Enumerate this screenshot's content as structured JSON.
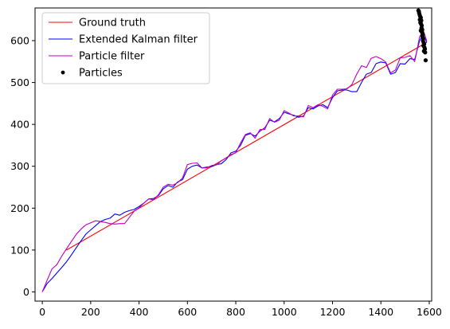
{
  "chart_data": {
    "type": "line",
    "title": "",
    "xlabel": "",
    "ylabel": "",
    "xlim": [
      -30,
      1610
    ],
    "ylim": [
      -22,
      678
    ],
    "xticks": [
      0,
      200,
      400,
      600,
      800,
      1000,
      1200,
      1400,
      1600
    ],
    "yticks": [
      0,
      100,
      200,
      300,
      400,
      500,
      600
    ],
    "grid": false,
    "legend_position": "top-left",
    "series": [
      {
        "name": "Ground truth",
        "kind": "line",
        "color": "#ff0000",
        "x": [
          100,
          1590
        ],
        "y": [
          100,
          596
        ]
      },
      {
        "name": "Extended Kalman filter",
        "kind": "line",
        "color": "#0000ff",
        "x": [
          0,
          20,
          40,
          60,
          80,
          100,
          120,
          140,
          160,
          180,
          200,
          220,
          240,
          260,
          280,
          300,
          320,
          340,
          360,
          380,
          400,
          420,
          440,
          460,
          480,
          500,
          520,
          540,
          560,
          580,
          600,
          620,
          640,
          660,
          680,
          700,
          720,
          740,
          760,
          780,
          800,
          820,
          840,
          860,
          880,
          900,
          920,
          940,
          960,
          980,
          1000,
          1020,
          1040,
          1060,
          1080,
          1100,
          1120,
          1140,
          1160,
          1180,
          1200,
          1220,
          1240,
          1260,
          1280,
          1300,
          1320,
          1340,
          1360,
          1380,
          1400,
          1420,
          1440,
          1460,
          1480,
          1500,
          1520,
          1540,
          1560,
          1575,
          1590
        ],
        "y": [
          0,
          20,
          32,
          45,
          58,
          72,
          88,
          105,
          122,
          138,
          148,
          158,
          168,
          173,
          176,
          186,
          183,
          190,
          194,
          197,
          204,
          212,
          222,
          223,
          230,
          246,
          254,
          250,
          263,
          268,
          293,
          300,
          303,
          296,
          298,
          299,
          304,
          306,
          316,
          332,
          336,
          350,
          374,
          378,
          372,
          384,
          392,
          410,
          406,
          414,
          429,
          425,
          422,
          417,
          420,
          440,
          437,
          444,
          447,
          440,
          464,
          480,
          482,
          482,
          478,
          478,
          500,
          520,
          524,
          545,
          549,
          547,
          520,
          524,
          545,
          544,
          557,
          555,
          600,
          615,
          596
        ]
      },
      {
        "name": "Particle filter",
        "kind": "line",
        "color": "#bf00bf",
        "x": [
          0,
          20,
          40,
          60,
          80,
          100,
          120,
          140,
          160,
          180,
          200,
          220,
          240,
          260,
          280,
          300,
          320,
          340,
          360,
          380,
          400,
          420,
          440,
          460,
          480,
          500,
          520,
          540,
          560,
          580,
          600,
          620,
          640,
          660,
          680,
          700,
          720,
          740,
          760,
          780,
          800,
          820,
          840,
          860,
          880,
          900,
          920,
          940,
          960,
          980,
          1000,
          1020,
          1040,
          1060,
          1080,
          1100,
          1120,
          1140,
          1160,
          1180,
          1200,
          1220,
          1240,
          1260,
          1280,
          1300,
          1320,
          1340,
          1360,
          1380,
          1400,
          1420,
          1440,
          1460,
          1480,
          1500,
          1520,
          1540,
          1560,
          1575,
          1590
        ],
        "y": [
          0,
          28,
          55,
          65,
          85,
          103,
          120,
          137,
          150,
          160,
          165,
          170,
          168,
          166,
          163,
          162,
          163,
          163,
          178,
          193,
          201,
          212,
          222,
          220,
          232,
          250,
          257,
          255,
          261,
          272,
          304,
          307,
          308,
          296,
          296,
          302,
          303,
          313,
          320,
          328,
          332,
          356,
          376,
          380,
          367,
          388,
          388,
          414,
          405,
          410,
          433,
          427,
          420,
          420,
          418,
          445,
          440,
          447,
          443,
          437,
          470,
          484,
          484,
          485,
          495,
          520,
          540,
          536,
          558,
          562,
          557,
          549,
          523,
          530,
          559,
          560,
          564,
          550,
          609,
          625,
          599
        ]
      },
      {
        "name": "Particles",
        "kind": "scatter",
        "color": "#000000",
        "x": [
          1555,
          1558,
          1560,
          1557,
          1562,
          1565,
          1561,
          1564,
          1567,
          1563,
          1566,
          1569,
          1568,
          1571,
          1565,
          1570,
          1573,
          1572,
          1575,
          1574,
          1577,
          1579,
          1576,
          1580,
          1582,
          1578,
          1583,
          1585
        ],
        "y": [
          672,
          666,
          662,
          670,
          658,
          655,
          650,
          646,
          648,
          643,
          640,
          636,
          630,
          626,
          624,
          620,
          615,
          610,
          605,
          600,
          595,
          592,
          588,
          584,
          580,
          575,
          572,
          553
        ]
      }
    ]
  }
}
